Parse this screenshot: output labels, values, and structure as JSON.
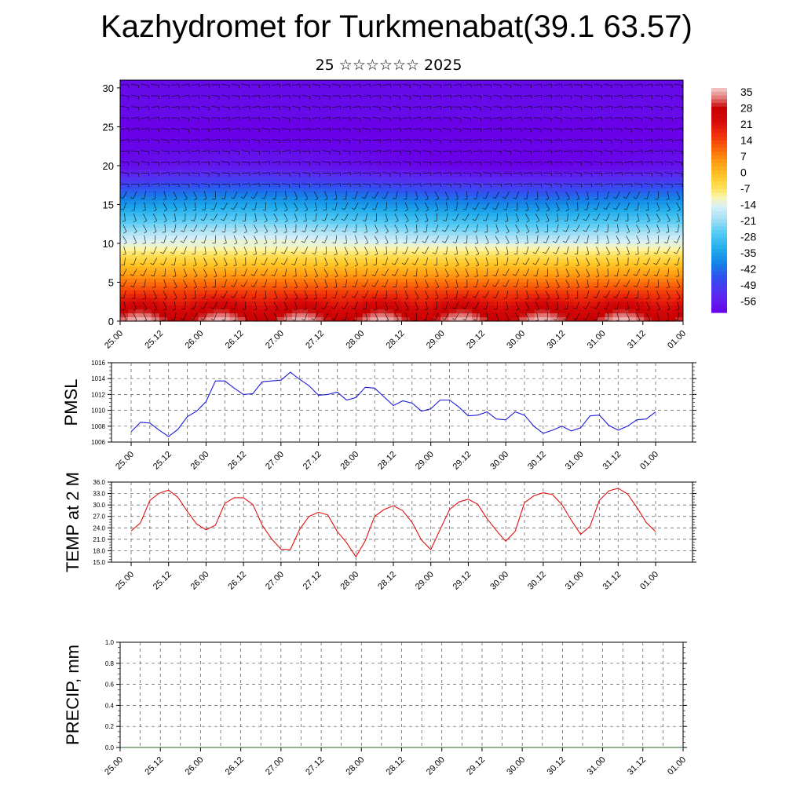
{
  "title": "Kazhydromet for Turkmenabat(39.1 63.57)",
  "subtitle": "25 ☆☆☆☆☆☆ 2025",
  "colors": {
    "pmsl_line": "#1a1adb",
    "temp_line": "#e01010",
    "precip_line": "#1a6b1a",
    "grid": "#555555"
  },
  "chart_data": [
    {
      "type": "heatmap",
      "title": "",
      "xlabel": "",
      "ylabel": "",
      "x_ticks": [
        "25.00",
        "25.12",
        "26.00",
        "26.12",
        "27.00",
        "27.12",
        "28.00",
        "28.12",
        "29.00",
        "29.12",
        "30.00",
        "30.12",
        "31.00",
        "31.12",
        "01.00"
      ],
      "y_ticks": [
        0,
        5,
        10,
        15,
        20,
        25,
        30
      ],
      "ylim": [
        0,
        31
      ],
      "colorbar_labels": [
        "35",
        "28",
        "21",
        "14",
        "7",
        "0",
        "-7",
        "-14",
        "-21",
        "-28",
        "-35",
        "-42",
        "-49",
        "-56"
      ],
      "overlay": "wind barbs"
    },
    {
      "type": "line",
      "ylabel": "PMSL",
      "ylim": [
        1006,
        1016
      ],
      "y_ticks": [
        "1016",
        "1014",
        "1012",
        "1010",
        "1008",
        "1006"
      ],
      "x_ticks": [
        "25.00",
        "25.12",
        "26.00",
        "26.12",
        "27.00",
        "27.12",
        "28.00",
        "28.12",
        "29.00",
        "29.12",
        "30.00",
        "30.12",
        "31.00",
        "31.12",
        "01.00"
      ],
      "series": [
        {
          "values": [
            1007.3,
            1008.5,
            1008.4,
            1007.5,
            1006.7,
            1007.6,
            1009.2,
            1009.9,
            1011.1,
            1013.7,
            1013.7,
            1012.8,
            1012.0,
            1012.1,
            1013.6,
            1013.7,
            1013.8,
            1014.8,
            1013.9,
            1013.1,
            1011.9,
            1012.0,
            1012.3,
            1011.3,
            1011.6,
            1012.9,
            1012.8,
            1011.7,
            1010.6,
            1011.2,
            1010.9,
            1009.9,
            1010.2,
            1011.3,
            1011.3,
            1010.4,
            1009.3,
            1009.4,
            1009.8,
            1008.9,
            1008.8,
            1009.8,
            1009.4,
            1008.0,
            1007.1,
            1007.5,
            1008.0,
            1007.4,
            1007.8,
            1009.3,
            1009.4,
            1008.1,
            1007.5,
            1008.0,
            1008.8,
            1008.9,
            1009.8
          ]
        }
      ]
    },
    {
      "type": "line",
      "ylabel": "TEMP at 2 M",
      "ylim": [
        15,
        36
      ],
      "y_ticks": [
        "36.0",
        "33.0",
        "30.0",
        "27.0",
        "24.0",
        "21.0",
        "18.0",
        "15.0"
      ],
      "x_ticks": [
        "25.00",
        "25.12",
        "26.00",
        "26.12",
        "27.00",
        "27.12",
        "28.00",
        "28.12",
        "29.00",
        "29.12",
        "30.00",
        "30.12",
        "31.00",
        "31.12",
        "01.00"
      ],
      "series": [
        {
          "values": [
            23.2,
            25.3,
            31.2,
            33.1,
            33.9,
            32.0,
            28.3,
            25.0,
            23.5,
            24.7,
            30.4,
            31.9,
            31.9,
            30.1,
            24.7,
            21.1,
            18.4,
            18.3,
            23.6,
            27.0,
            28.1,
            27.4,
            23.1,
            20.1,
            16.4,
            20.6,
            27.0,
            28.8,
            29.8,
            28.5,
            25.4,
            20.8,
            18.3,
            23.6,
            28.8,
            30.8,
            31.5,
            30.2,
            26.4,
            23.3,
            20.5,
            23.1,
            30.6,
            32.4,
            33.2,
            32.7,
            30.1,
            26.0,
            22.3,
            24.4,
            31.2,
            33.7,
            34.4,
            32.9,
            29.4,
            25.4,
            23.0
          ]
        }
      ]
    },
    {
      "type": "line",
      "ylabel": "PRECIP, mm",
      "ylim": [
        0,
        1
      ],
      "y_ticks": [
        "1.0",
        "0.8",
        "0.6",
        "0.4",
        "0.2",
        "0.0"
      ],
      "x_ticks": [
        "25.00",
        "25.12",
        "26.00",
        "26.12",
        "27.00",
        "27.12",
        "28.00",
        "28.12",
        "29.00",
        "29.12",
        "30.00",
        "30.12",
        "31.00",
        "31.12",
        "01.00"
      ],
      "series": [
        {
          "values": [
            0,
            0,
            0,
            0,
            0,
            0,
            0,
            0,
            0,
            0,
            0,
            0,
            0,
            0,
            0,
            0,
            0,
            0,
            0,
            0,
            0,
            0,
            0,
            0,
            0,
            0,
            0,
            0,
            0,
            0,
            0,
            0,
            0,
            0,
            0,
            0,
            0,
            0,
            0,
            0,
            0,
            0,
            0,
            0,
            0,
            0,
            0,
            0,
            0,
            0,
            0,
            0,
            0,
            0,
            0,
            0,
            0
          ]
        }
      ]
    }
  ]
}
